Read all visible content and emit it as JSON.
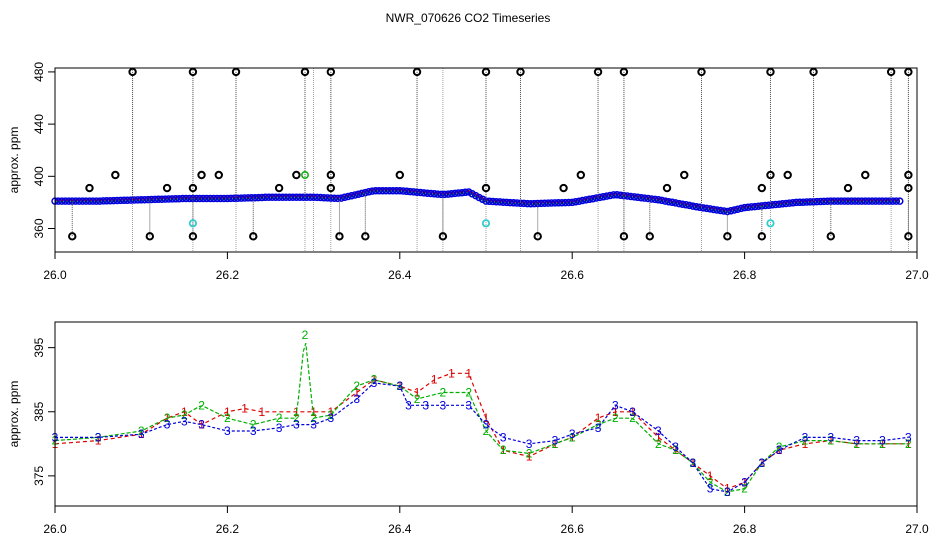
{
  "title": "NWR_070626  CO2 Timeseries",
  "colors": {
    "series1": "#dd0000",
    "series2": "#00b000",
    "series3": "#0000dd",
    "flag": "#000000",
    "cyan": "#33cccc",
    "spike": "#888888"
  },
  "chart_data": [
    {
      "type": "scatter",
      "title": "NWR_070626  CO2 Timeseries",
      "xlabel": "",
      "ylabel": "approx. ppm",
      "xlim": [
        26.0,
        27.0
      ],
      "ylim": [
        342,
        483
      ],
      "xticks": [
        "26.0",
        "26.2",
        "26.4",
        "26.6",
        "26.8",
        "27.0"
      ],
      "yticks": [
        "360",
        "400",
        "440",
        "480"
      ],
      "baseline": {
        "x": [
          26.0,
          26.05,
          26.1,
          26.15,
          26.2,
          26.25,
          26.3,
          26.33,
          26.35,
          26.37,
          26.4,
          26.45,
          26.48,
          26.5,
          26.55,
          26.6,
          26.65,
          26.7,
          26.75,
          26.78,
          26.8,
          26.83,
          26.86,
          26.9,
          26.95,
          26.98
        ],
        "y": [
          381,
          381,
          382,
          383,
          383,
          384,
          384,
          383,
          386,
          389,
          389,
          386,
          388,
          381,
          379,
          380,
          386,
          382,
          376,
          373,
          376,
          378,
          380,
          381,
          381,
          381
        ]
      },
      "flag_high": [
        26.09,
        26.16,
        26.21,
        26.29,
        26.32,
        26.42,
        26.5,
        26.54,
        26.63,
        26.66,
        26.75,
        26.83,
        26.88,
        26.97,
        26.99
      ],
      "flag_low": [
        26.02,
        26.11,
        26.16,
        26.23,
        26.33,
        26.36,
        26.45,
        26.56,
        26.66,
        26.69,
        26.78,
        26.82,
        26.9,
        26.99
      ],
      "flag_mid": [
        {
          "x": 26.04,
          "y": 391
        },
        {
          "x": 26.07,
          "y": 401
        },
        {
          "x": 26.13,
          "y": 391
        },
        {
          "x": 26.16,
          "y": 391
        },
        {
          "x": 26.17,
          "y": 401
        },
        {
          "x": 26.19,
          "y": 401
        },
        {
          "x": 26.26,
          "y": 391
        },
        {
          "x": 26.28,
          "y": 401
        },
        {
          "x": 26.32,
          "y": 391
        },
        {
          "x": 26.32,
          "y": 401
        },
        {
          "x": 26.4,
          "y": 401
        },
        {
          "x": 26.5,
          "y": 391
        },
        {
          "x": 26.59,
          "y": 391
        },
        {
          "x": 26.61,
          "y": 401
        },
        {
          "x": 26.71,
          "y": 391
        },
        {
          "x": 26.73,
          "y": 401
        },
        {
          "x": 26.82,
          "y": 391
        },
        {
          "x": 26.83,
          "y": 401
        },
        {
          "x": 26.85,
          "y": 401
        },
        {
          "x": 26.92,
          "y": 391
        },
        {
          "x": 26.94,
          "y": 401
        },
        {
          "x": 26.99,
          "y": 391
        },
        {
          "x": 26.99,
          "y": 401
        }
      ],
      "cyan_points": [
        {
          "x": 26.16,
          "y": 364
        },
        {
          "x": 26.5,
          "y": 364
        },
        {
          "x": 26.83,
          "y": 364
        }
      ],
      "spikes": [
        26.09,
        26.16,
        26.21,
        26.29,
        26.3,
        26.32,
        26.42,
        26.45,
        26.5,
        26.54,
        26.63,
        26.66,
        26.75,
        26.83,
        26.88,
        26.97,
        26.99
      ]
    },
    {
      "type": "line",
      "xlabel": "",
      "ylabel": "approx. ppm",
      "xlim": [
        26.0,
        27.0
      ],
      "ylim": [
        370.3,
        399
      ],
      "xticks": [
        "26.0",
        "26.2",
        "26.4",
        "26.6",
        "26.8",
        "27.0"
      ],
      "yticks": [
        "375",
        "385",
        "395"
      ],
      "series": [
        {
          "marker": "1",
          "x": [
            26.0,
            26.05,
            26.1,
            26.13,
            26.15,
            26.17,
            26.2,
            26.22,
            26.24,
            26.28,
            26.3,
            26.32,
            26.35,
            26.37,
            26.4,
            26.42,
            26.44,
            26.46,
            26.48,
            26.5,
            26.52,
            26.55,
            26.58,
            26.6,
            26.63,
            26.65,
            26.67,
            26.7,
            26.72,
            26.74,
            26.76,
            26.78,
            26.8,
            26.82,
            26.84,
            26.87,
            26.9,
            26.93,
            26.96,
            26.99
          ],
          "y": [
            380,
            380.5,
            381.5,
            384,
            385,
            383,
            385,
            385.5,
            385,
            385,
            385,
            385,
            388,
            390,
            389,
            388,
            390,
            391,
            391,
            384,
            379,
            378,
            380,
            381,
            384,
            385,
            385,
            381,
            379,
            377,
            375,
            373,
            374,
            377,
            379,
            380,
            380.5,
            380,
            380,
            380
          ]
        },
        {
          "marker": "2",
          "x": [
            26.0,
            26.05,
            26.1,
            26.13,
            26.15,
            26.17,
            26.2,
            26.23,
            26.26,
            26.28,
            26.29,
            26.3,
            26.32,
            26.35,
            26.37,
            26.4,
            26.42,
            26.45,
            26.48,
            26.5,
            26.52,
            26.55,
            26.58,
            26.6,
            26.63,
            26.65,
            26.67,
            26.7,
            26.72,
            26.74,
            26.76,
            26.78,
            26.8,
            26.82,
            26.84,
            26.87,
            26.9,
            26.93,
            26.96,
            26.99
          ],
          "y": [
            380.5,
            381,
            382,
            384,
            384.5,
            386,
            384,
            383,
            384,
            384,
            397,
            384,
            384.5,
            389,
            390,
            389,
            387,
            388,
            388,
            382,
            379,
            378.5,
            380,
            381,
            383,
            384,
            384,
            380,
            379,
            377,
            374,
            372.5,
            373,
            377,
            379.5,
            380.5,
            380.5,
            380,
            380,
            380
          ]
        },
        {
          "marker": "3",
          "x": [
            26.0,
            26.05,
            26.1,
            26.13,
            26.15,
            26.17,
            26.2,
            26.23,
            26.26,
            26.28,
            26.3,
            26.32,
            26.35,
            26.37,
            26.4,
            26.41,
            26.43,
            26.45,
            26.48,
            26.5,
            26.52,
            26.55,
            26.58,
            26.6,
            26.63,
            26.65,
            26.67,
            26.7,
            26.72,
            26.74,
            26.76,
            26.78,
            26.8,
            26.82,
            26.84,
            26.87,
            26.9,
            26.93,
            26.96,
            26.99
          ],
          "y": [
            381,
            381,
            381.5,
            383,
            383.5,
            383,
            382,
            382,
            382.5,
            383,
            383,
            384,
            387,
            389.5,
            389,
            386,
            386,
            386,
            386,
            383,
            381,
            380,
            380.5,
            381.5,
            382.5,
            386,
            385,
            382,
            379.5,
            377,
            373,
            372.5,
            374,
            377,
            379,
            381,
            381,
            380.5,
            380.5,
            381
          ]
        }
      ]
    }
  ]
}
